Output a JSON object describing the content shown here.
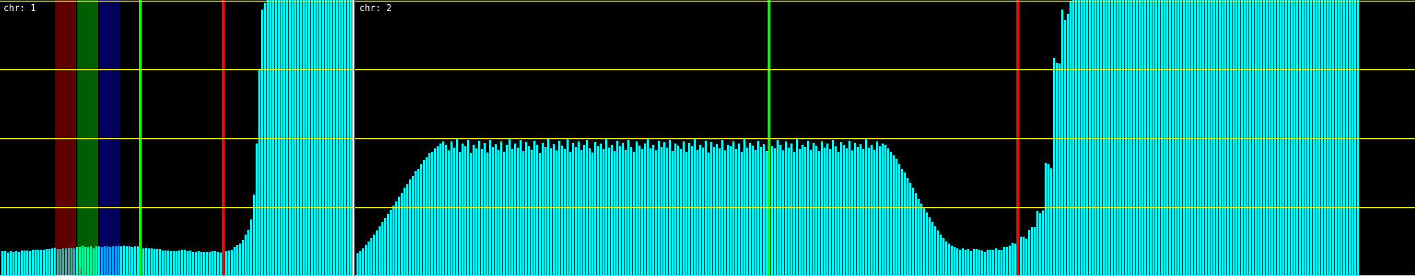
{
  "chart_data": [
    {
      "type": "bar",
      "title": "chr: 1",
      "ylim": [
        0,
        4
      ],
      "grid": true,
      "bar_color": "#00ffff",
      "grid_color": "#ffff00",
      "values": [
        0.36,
        0.36,
        0.34,
        0.36,
        0.35,
        0.36,
        0.35,
        0.37,
        0.37,
        0.37,
        0.36,
        0.38,
        0.38,
        0.38,
        0.38,
        0.38,
        0.39,
        0.39,
        0.4,
        0.41,
        0.39,
        0.39,
        0.4,
        0.4,
        0.41,
        0.41,
        0.4,
        0.42,
        0.42,
        0.44,
        0.42,
        0.42,
        0.43,
        0.4,
        0.43,
        0.43,
        0.42,
        0.43,
        0.43,
        0.42,
        0.43,
        0.43,
        0.44,
        0.43,
        0.44,
        0.43,
        0.43,
        0.42,
        0.43,
        0.43,
        0.43,
        0.4,
        0.41,
        0.4,
        0.4,
        0.39,
        0.39,
        0.39,
        0.37,
        0.37,
        0.37,
        0.36,
        0.36,
        0.36,
        0.37,
        0.38,
        0.38,
        0.36,
        0.37,
        0.35,
        0.35,
        0.36,
        0.35,
        0.35,
        0.35,
        0.35,
        0.36,
        0.36,
        0.35,
        0.34,
        0.34,
        0.36,
        0.37,
        0.38,
        0.42,
        0.45,
        0.47,
        0.52,
        0.6,
        0.67,
        0.82,
        1.18,
        1.92,
        3.0,
        3.86,
        3.96,
        4,
        4,
        4,
        4,
        4,
        4,
        4,
        4,
        4,
        4,
        4,
        4,
        4,
        4,
        4,
        4,
        4,
        4,
        4,
        4,
        4,
        4,
        4,
        4,
        4,
        4,
        4,
        4,
        4,
        4,
        4
      ],
      "highlight_bands": [
        {
          "color": "#ff0000",
          "from_bar": 20,
          "to_bar": 26
        },
        {
          "color": "#00ff00",
          "from_bar": 28,
          "to_bar": 34
        },
        {
          "color": "#0000ff",
          "from_bar": 36,
          "to_bar": 42
        }
      ],
      "markers": [
        {
          "color": "#00ff00",
          "at_bar": 50
        },
        {
          "color": "#ff0000",
          "at_bar": 80
        }
      ],
      "annotation": "0"
    },
    {
      "type": "bar",
      "title": "chr: 2",
      "ylim": [
        0,
        4
      ],
      "grid": true,
      "bar_color": "#00ffff",
      "grid_color": "#ffff00",
      "values": [
        0.33,
        0.36,
        0.4,
        0.45,
        0.5,
        0.55,
        0.6,
        0.66,
        0.72,
        0.78,
        0.84,
        0.9,
        0.96,
        1.02,
        1.08,
        1.15,
        1.2,
        1.28,
        1.33,
        1.4,
        1.45,
        1.52,
        1.55,
        1.62,
        1.68,
        1.72,
        1.78,
        1.8,
        1.85,
        1.88,
        1.92,
        1.95,
        1.9,
        1.82,
        1.95,
        1.86,
        1.98,
        1.8,
        1.92,
        1.88,
        1.97,
        1.78,
        1.9,
        1.85,
        1.96,
        1.84,
        1.93,
        1.79,
        1.97,
        1.87,
        1.91,
        1.83,
        1.95,
        1.8,
        1.9,
        1.98,
        1.84,
        1.92,
        1.86,
        1.97,
        1.81,
        1.94,
        1.88,
        1.83,
        1.96,
        1.9,
        1.78,
        1.93,
        1.87,
        1.99,
        1.85,
        1.91,
        1.82,
        1.96,
        1.89,
        1.84,
        1.98,
        1.8,
        1.93,
        1.87,
        1.95,
        1.83,
        1.9,
        1.97,
        1.85,
        1.79,
        1.94,
        1.88,
        1.92,
        1.84,
        1.98,
        1.86,
        1.9,
        1.81,
        1.96,
        1.88,
        1.93,
        1.83,
        1.97,
        1.87,
        1.8,
        1.95,
        1.89,
        1.84,
        1.92,
        1.98,
        1.85,
        1.9,
        1.82,
        1.96,
        1.87,
        1.94,
        1.86,
        1.97,
        1.81,
        1.92,
        1.89,
        1.84,
        1.95,
        1.8,
        1.93,
        1.88,
        1.98,
        1.83,
        1.9,
        1.86,
        1.96,
        1.79,
        1.94,
        1.87,
        1.91,
        1.85,
        1.97,
        1.82,
        1.9,
        1.88,
        1.95,
        1.84,
        1.92,
        1.8,
        1.98,
        1.86,
        1.93,
        1.89,
        1.83,
        1.96,
        1.87,
        1.91,
        1.81,
        1.94,
        1.88,
        1.85,
        1.97,
        1.9,
        1.82,
        1.95,
        1.86,
        1.92,
        1.8,
        1.98,
        1.84,
        1.9,
        1.87,
        1.96,
        1.83,
        1.93,
        1.89,
        1.81,
        1.95,
        1.86,
        1.92,
        1.84,
        1.97,
        1.88,
        1.8,
        1.94,
        1.9,
        1.85,
        1.96,
        1.82,
        1.93,
        1.87,
        1.91,
        1.84,
        1.98,
        1.86,
        1.9,
        1.83,
        1.95,
        1.88,
        1.92,
        1.9,
        1.85,
        1.8,
        1.75,
        1.7,
        1.62,
        1.55,
        1.5,
        1.42,
        1.35,
        1.28,
        1.2,
        1.12,
        1.05,
        0.98,
        0.92,
        0.85,
        0.78,
        0.72,
        0.66,
        0.6,
        0.55,
        0.5,
        0.47,
        0.44,
        0.42,
        0.4,
        0.38,
        0.4,
        0.38,
        0.39,
        0.36,
        0.39,
        0.39,
        0.38,
        0.37,
        0.35,
        0.38,
        0.38,
        0.38,
        0.4,
        0.38,
        0.38,
        0.42,
        0.42,
        0.44,
        0.48,
        0.47,
        0.52,
        0.57,
        0.57,
        0.54,
        0.67,
        0.71,
        0.71,
        0.94,
        0.91,
        0.95,
        1.64,
        1.62,
        1.56,
        3.16,
        3.09,
        3.08,
        3.86,
        3.71,
        3.8,
        3.98,
        4,
        4,
        4,
        4,
        4,
        4,
        4,
        4,
        4,
        4,
        4,
        4,
        4,
        4,
        4,
        4,
        4,
        4,
        4,
        4,
        4,
        4,
        4,
        4,
        4,
        4,
        4,
        4,
        4,
        4,
        4,
        4,
        4,
        4,
        4,
        4,
        4,
        4,
        4,
        4,
        4,
        4,
        4,
        4,
        4,
        4,
        4,
        4,
        4,
        4,
        4,
        4,
        4,
        4,
        4,
        4,
        4,
        4,
        4,
        4,
        4,
        4,
        4,
        4,
        4,
        4,
        4,
        4,
        4,
        4,
        4,
        4,
        4,
        4,
        4,
        4,
        4,
        4,
        4,
        4,
        4,
        4,
        4,
        4,
        4,
        4,
        4,
        4,
        4,
        4,
        4,
        4,
        4,
        4,
        4,
        4,
        4,
        4,
        4,
        4,
        4,
        4,
        4,
        4
      ],
      "markers": [
        {
          "color": "#00ff00",
          "at_bar": 149
        },
        {
          "color": "#ff0000",
          "at_bar": 239
        }
      ]
    }
  ]
}
